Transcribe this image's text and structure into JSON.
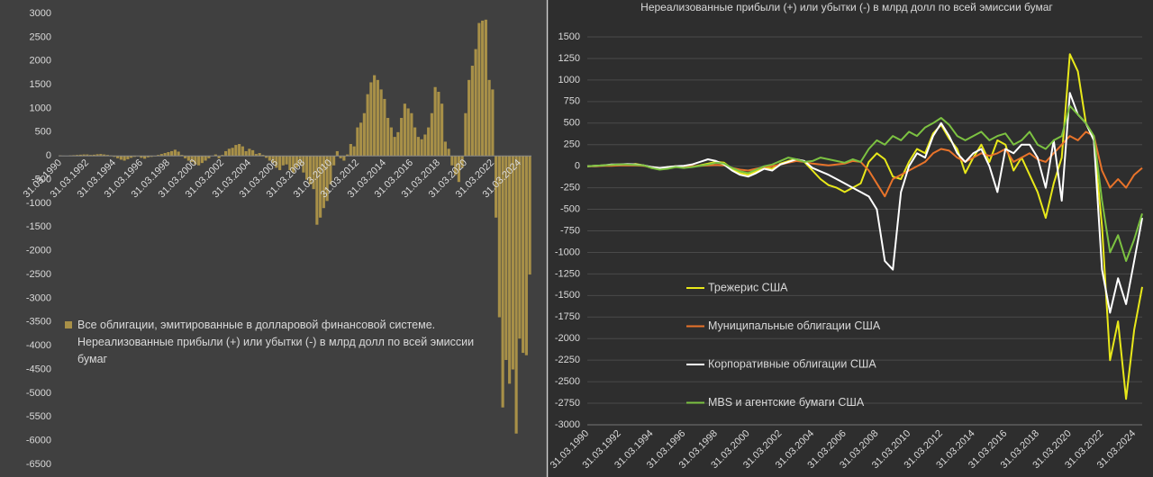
{
  "chart_data": [
    {
      "type": "bar",
      "categories": [
        "31.03.1990",
        null,
        null,
        null,
        null,
        null,
        null,
        null,
        "31.03.1992",
        null,
        null,
        null,
        null,
        null,
        null,
        null,
        "31.03.1994",
        null,
        null,
        null,
        null,
        null,
        null,
        null,
        "31.03.1996",
        null,
        null,
        null,
        null,
        null,
        null,
        null,
        "31.03.1998",
        null,
        null,
        null,
        null,
        null,
        null,
        null,
        "31.03.2000",
        null,
        null,
        null,
        null,
        null,
        null,
        null,
        "31.03.2002",
        null,
        null,
        null,
        null,
        null,
        null,
        null,
        "31.03.2004",
        null,
        null,
        null,
        null,
        null,
        null,
        null,
        "31.03.2006",
        null,
        null,
        null,
        null,
        null,
        null,
        null,
        "31.03.2008",
        null,
        null,
        null,
        null,
        null,
        null,
        null,
        "31.03.2010",
        null,
        null,
        null,
        null,
        null,
        null,
        null,
        "31.03.2012",
        null,
        null,
        null,
        null,
        null,
        null,
        null,
        "31.03.2014",
        null,
        null,
        null,
        null,
        null,
        null,
        null,
        "31.03.2016",
        null,
        null,
        null,
        null,
        null,
        null,
        null,
        "31.03.2018",
        null,
        null,
        null,
        null,
        null,
        null,
        null,
        "31.03.2020",
        null,
        null,
        null,
        null,
        null,
        null,
        null,
        "31.03.2022",
        null,
        null,
        null,
        null,
        null,
        null,
        null,
        "31.03.2024",
        null,
        null,
        null
      ],
      "series": [
        {
          "name": "Все облигации, эмитированные в долларовой финансовой системе. Нереализованные прибыли (+) или убытки (-) в млрд долл по всей эмиссии бумаг",
          "color": "#a89048",
          "values": [
            10,
            5,
            0,
            10,
            15,
            20,
            25,
            30,
            30,
            20,
            25,
            35,
            40,
            30,
            20,
            10,
            -20,
            -50,
            -80,
            -100,
            -70,
            -40,
            -20,
            -10,
            -40,
            -60,
            -30,
            -20,
            -10,
            20,
            40,
            60,
            80,
            100,
            130,
            90,
            20,
            -50,
            -100,
            -130,
            -180,
            -200,
            -150,
            -100,
            -50,
            0,
            30,
            -50,
            20,
            100,
            150,
            170,
            230,
            250,
            200,
            100,
            150,
            120,
            40,
            60,
            20,
            -40,
            -100,
            -150,
            -250,
            -300,
            -200,
            -180,
            -300,
            -350,
            -250,
            -200,
            -350,
            -500,
            -600,
            -700,
            -1450,
            -1300,
            -1100,
            -950,
            -600,
            -200,
            100,
            -50,
            -100,
            30,
            250,
            200,
            600,
            700,
            900,
            1300,
            1550,
            1700,
            1600,
            1400,
            1200,
            800,
            600,
            400,
            500,
            800,
            1100,
            1000,
            900,
            600,
            400,
            350,
            450,
            600,
            900,
            1450,
            1350,
            1100,
            300,
            150,
            -200,
            -400,
            -550,
            -250,
            900,
            1600,
            1900,
            2250,
            2800,
            2850,
            2870,
            1600,
            1400,
            -1300,
            -3400,
            -5300,
            -4300,
            -4800,
            -4500,
            -5850,
            -3850,
            -4150,
            -4200,
            -2500
          ]
        }
      ],
      "ylim": [
        -6500,
        3000
      ],
      "yticks": [
        -6500,
        -6000,
        -5500,
        -5000,
        -4500,
        -4000,
        -3500,
        -3000,
        -2500,
        -2000,
        -1500,
        -1000,
        -500,
        0,
        500,
        1000,
        1500,
        2000,
        2500,
        3000
      ],
      "grid": false
    },
    {
      "type": "line",
      "title": "Нереализованные прибыли (+) или убытки (-) в млрд долл по всей эмиссии бумаг",
      "categories": [
        "31.03.1990",
        null,
        null,
        null,
        "31.03.1992",
        null,
        null,
        null,
        "31.03.1994",
        null,
        null,
        null,
        "31.03.1996",
        null,
        null,
        null,
        "31.03.1998",
        null,
        null,
        null,
        "31.03.2000",
        null,
        null,
        null,
        "31.03.2002",
        null,
        null,
        null,
        "31.03.2004",
        null,
        null,
        null,
        "31.03.2006",
        null,
        null,
        null,
        "31.03.2008",
        null,
        null,
        null,
        "31.03.2010",
        null,
        null,
        null,
        "31.03.2012",
        null,
        null,
        null,
        "31.03.2014",
        null,
        null,
        null,
        "31.03.2016",
        null,
        null,
        null,
        "31.03.2018",
        null,
        null,
        null,
        "31.03.2020",
        null,
        null,
        null,
        "31.03.2022",
        null,
        null,
        null,
        "31.03.2024",
        null
      ],
      "series": [
        {
          "name": "Трежерис США",
          "color": "#e8e81a",
          "values": [
            0,
            5,
            10,
            15,
            20,
            15,
            25,
            10,
            -20,
            -30,
            -10,
            0,
            -10,
            -5,
            10,
            30,
            50,
            40,
            -30,
            -80,
            -100,
            -60,
            -20,
            -30,
            30,
            60,
            80,
            50,
            -50,
            -150,
            -220,
            -250,
            -300,
            -250,
            -200,
            50,
            150,
            80,
            -120,
            -150,
            50,
            200,
            150,
            380,
            480,
            320,
            200,
            -80,
            100,
            250,
            50,
            300,
            250,
            -50,
            100,
            -100,
            -300,
            -600,
            -200,
            100,
            1300,
            1100,
            500,
            300,
            -700,
            -2250,
            -1800,
            -2700,
            -1900,
            -1400
          ]
        },
        {
          "name": "Муниципальные облигации США",
          "color": "#e8732a",
          "values": [
            0,
            0,
            5,
            5,
            10,
            10,
            10,
            5,
            -10,
            -20,
            -15,
            -10,
            -5,
            0,
            5,
            10,
            15,
            10,
            -20,
            -40,
            -50,
            -30,
            -10,
            0,
            20,
            40,
            60,
            50,
            30,
            20,
            10,
            20,
            30,
            60,
            50,
            -50,
            -200,
            -350,
            -150,
            -100,
            -50,
            0,
            50,
            150,
            200,
            180,
            100,
            50,
            100,
            150,
            120,
            150,
            200,
            50,
            100,
            150,
            80,
            50,
            150,
            250,
            350,
            300,
            400,
            350,
            -50,
            -250,
            -150,
            -250,
            -100,
            -20
          ]
        },
        {
          "name": "Корпоративные облигации США",
          "color": "#ffffff",
          "values": [
            0,
            5,
            10,
            20,
            20,
            25,
            20,
            10,
            -10,
            -20,
            -10,
            0,
            5,
            20,
            50,
            80,
            60,
            20,
            -50,
            -100,
            -120,
            -80,
            -30,
            -50,
            20,
            50,
            80,
            60,
            -20,
            -60,
            -100,
            -150,
            -200,
            -250,
            -300,
            -350,
            -500,
            -1100,
            -1200,
            -300,
            0,
            150,
            100,
            350,
            500,
            350,
            150,
            50,
            150,
            200,
            0,
            -300,
            200,
            150,
            250,
            250,
            100,
            -250,
            300,
            -400,
            850,
            600,
            500,
            300,
            -1200,
            -1700,
            -1300,
            -1600,
            -1100,
            -600
          ]
        },
        {
          "name": "MBS и агентские бумаги США",
          "color": "#7cc241",
          "values": [
            0,
            5,
            10,
            15,
            20,
            20,
            15,
            10,
            -20,
            -40,
            -30,
            -10,
            -20,
            -10,
            5,
            20,
            40,
            30,
            -20,
            -60,
            -80,
            -40,
            0,
            20,
            60,
            100,
            80,
            50,
            60,
            100,
            80,
            60,
            40,
            80,
            50,
            200,
            300,
            250,
            350,
            300,
            400,
            350,
            450,
            500,
            560,
            480,
            350,
            300,
            350,
            400,
            300,
            350,
            380,
            250,
            300,
            400,
            250,
            200,
            300,
            350,
            700,
            600,
            500,
            350,
            -400,
            -1000,
            -800,
            -1100,
            -850,
            -550
          ]
        }
      ],
      "ylim": [
        -3000,
        1500
      ],
      "yticks": [
        -3000,
        -2750,
        -2500,
        -2250,
        -2000,
        -1750,
        -1500,
        -1250,
        -1000,
        -750,
        -500,
        -250,
        0,
        250,
        500,
        750,
        1000,
        1250,
        1500
      ],
      "grid": true
    }
  ]
}
